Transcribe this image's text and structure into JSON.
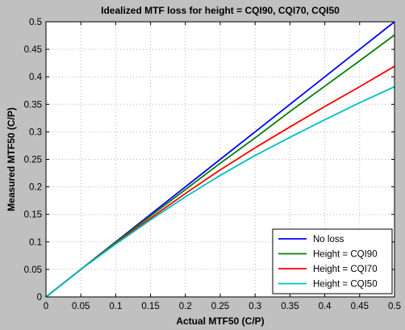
{
  "chart_data": {
    "type": "line",
    "title": "Idealized MTF loss for height = CQI90, CQI70, CQI50",
    "xlabel": "Actual MTF50 (C/P)",
    "ylabel": "Measured MTF50 (C/P)",
    "xlim": [
      0,
      0.5
    ],
    "ylim": [
      0,
      0.5
    ],
    "xticks": [
      0,
      0.05,
      0.1,
      0.15,
      0.2,
      0.25,
      0.3,
      0.35,
      0.4,
      0.45,
      0.5
    ],
    "yticks": [
      0,
      0.05,
      0.1,
      0.15,
      0.2,
      0.25,
      0.3,
      0.35,
      0.4,
      0.45,
      0.5
    ],
    "xtick_labels": [
      "0",
      "0.05",
      "0.1",
      "0.15",
      "0.2",
      "0.25",
      "0.3",
      "0.35",
      "0.4",
      "0.45",
      "0.5"
    ],
    "ytick_labels": [
      "0",
      "0.05",
      "0.1",
      "0.15",
      "0.2",
      "0.25",
      "0.3",
      "0.35",
      "0.4",
      "0.45",
      "0.5"
    ],
    "grid": true,
    "legend_position": "bottom-right",
    "x": [
      0,
      0.05,
      0.1,
      0.15,
      0.2,
      0.25,
      0.3,
      0.35,
      0.4,
      0.45,
      0.5
    ],
    "series": [
      {
        "name": "No loss",
        "color": "#0000ff",
        "values": [
          0,
          0.05,
          0.1,
          0.15,
          0.2,
          0.25,
          0.3,
          0.35,
          0.4,
          0.45,
          0.5
        ]
      },
      {
        "name": "Height = CQI90",
        "color": "#008000",
        "values": [
          0,
          0.05,
          0.099,
          0.147,
          0.195,
          0.243,
          0.289,
          0.337,
          0.383,
          0.429,
          0.476
        ]
      },
      {
        "name": "Height = CQI70",
        "color": "#ff0000",
        "values": [
          0,
          0.05,
          0.097,
          0.143,
          0.188,
          0.231,
          0.271,
          0.309,
          0.346,
          0.382,
          0.419
        ]
      },
      {
        "name": "Height = CQI50",
        "color": "#00bfbf",
        "values": [
          0,
          0.05,
          0.096,
          0.14,
          0.182,
          0.221,
          0.257,
          0.29,
          0.322,
          0.353,
          0.382
        ]
      }
    ]
  }
}
